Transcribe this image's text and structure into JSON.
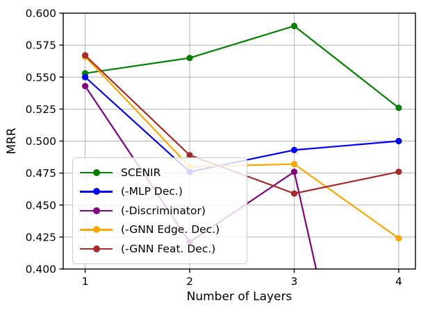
{
  "chart_data": {
    "type": "line",
    "title": "",
    "xlabel": "Number of Layers",
    "ylabel": "MRR",
    "x": [
      1,
      2,
      3,
      4
    ],
    "xtick_labels": [
      "1",
      "2",
      "3",
      "4"
    ],
    "ytick_values": [
      0.4,
      0.425,
      0.45,
      0.475,
      0.5,
      0.525,
      0.55,
      0.575,
      0.6
    ],
    "ytick_labels": [
      "0.400",
      "0.425",
      "0.450",
      "0.475",
      "0.500",
      "0.525",
      "0.550",
      "0.575",
      "0.600"
    ],
    "xlim": [
      0.79,
      4.16
    ],
    "ylim": [
      0.4,
      0.6
    ],
    "grid": true,
    "legend_position": "lower left",
    "marker": "circle",
    "series": [
      {
        "name": "SCENIR",
        "color": "#008000",
        "values": [
          0.553,
          0.565,
          0.59,
          0.526
        ]
      },
      {
        "name": "(-MLP Dec.)",
        "color": "#0000ff",
        "values": [
          0.55,
          0.476,
          0.493,
          0.5
        ]
      },
      {
        "name": "(-Discriminator)",
        "color": "#800080",
        "values": [
          0.543,
          0.421,
          0.476,
          null
        ],
        "clip_exit": {
          "x": 3.21,
          "y": 0.4
        },
        "note": "line descends below y-axis minimum after layer 3 (clipped at plot edge)"
      },
      {
        "name": "(-GNN Edge. Dec.)",
        "color": "#ffa500",
        "values": [
          0.566,
          0.48,
          0.482,
          0.424
        ],
        "note": "layer-1 marker hidden behind (-GNN Feat. Dec.) marker"
      },
      {
        "name": "(-GNN Feat. Dec.)",
        "color": "#a52a2a",
        "values": [
          0.567,
          0.489,
          0.459,
          0.476
        ]
      }
    ]
  }
}
